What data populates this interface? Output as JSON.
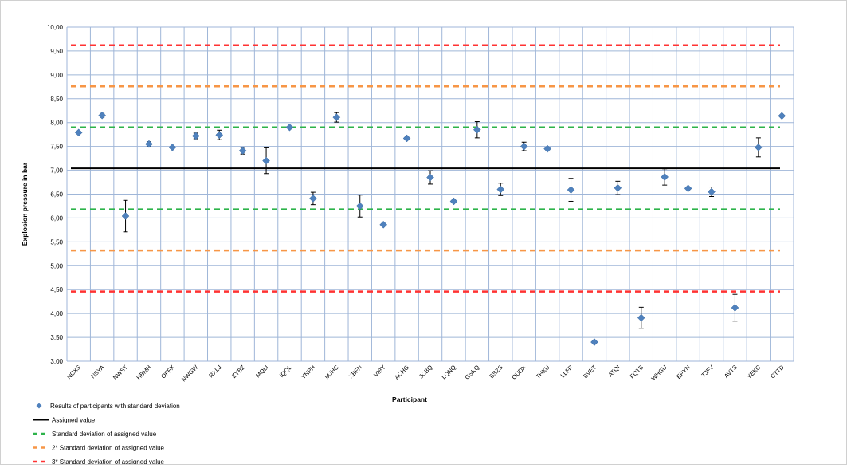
{
  "chart_data": {
    "type": "scatter",
    "title": "",
    "xlabel": "Participant",
    "ylabel": "Explosion pressure in bar",
    "ylim": [
      3.0,
      10.0
    ],
    "ytick_step": 0.5,
    "decimal_separator": ",",
    "grid": true,
    "legend_placement": "bottom-left",
    "categories": [
      "NCXS",
      "NSYA",
      "NWST",
      "HBMH",
      "OFFX",
      "NWGW",
      "RXLJ",
      "ZYBZ",
      "MQLI",
      "IQQL",
      "YNPH",
      "MJHC",
      "XBFN",
      "VIBY",
      "ACHG",
      "JCBQ",
      "LQNQ",
      "GSKQ",
      "BSZS",
      "OUDX",
      "THKU",
      "LLFR",
      "BVET",
      "ATQI",
      "FQTB",
      "WHGU",
      "EPYN",
      "TJFV",
      "AVTS",
      "YEKC",
      "CTTD"
    ],
    "series": [
      {
        "name": "Results of participants with standard deviation",
        "marker": "diamond",
        "color": "#4f81bd",
        "values": [
          7.79,
          8.15,
          6.04,
          7.55,
          7.48,
          7.72,
          7.74,
          7.41,
          7.2,
          7.9,
          6.41,
          8.11,
          6.25,
          5.86,
          7.67,
          6.85,
          6.35,
          7.85,
          6.6,
          7.5,
          7.45,
          6.59,
          3.4,
          6.63,
          3.91,
          6.86,
          6.62,
          6.55,
          4.12,
          7.48,
          8.14
        ],
        "std_dev": [
          0,
          0.04,
          0.33,
          0.05,
          0,
          0.06,
          0.1,
          0.07,
          0.27,
          0,
          0.13,
          0.1,
          0.23,
          0,
          0,
          0.14,
          0,
          0.17,
          0.13,
          0.09,
          0,
          0.24,
          0,
          0.14,
          0.22,
          0.17,
          0,
          0.1,
          0.28,
          0.2,
          0
        ]
      }
    ],
    "reference_lines": [
      {
        "name": "Assigned value",
        "values": [
          7.04
        ],
        "color": "#000000",
        "style": "solid"
      },
      {
        "name": "Standard deviation of assigned value",
        "values": [
          7.9,
          6.18
        ],
        "color": "#2db34a",
        "style": "dashed"
      },
      {
        "name": "2* Standard deviation of assigned value",
        "values": [
          8.76,
          5.32
        ],
        "color": "#f79646",
        "style": "dashed"
      },
      {
        "name": "3* Standard deviation of assigned value",
        "values": [
          9.62,
          4.46
        ],
        "color": "#ff3333",
        "style": "dashed"
      }
    ],
    "grid_color": "#9fb6d8"
  }
}
